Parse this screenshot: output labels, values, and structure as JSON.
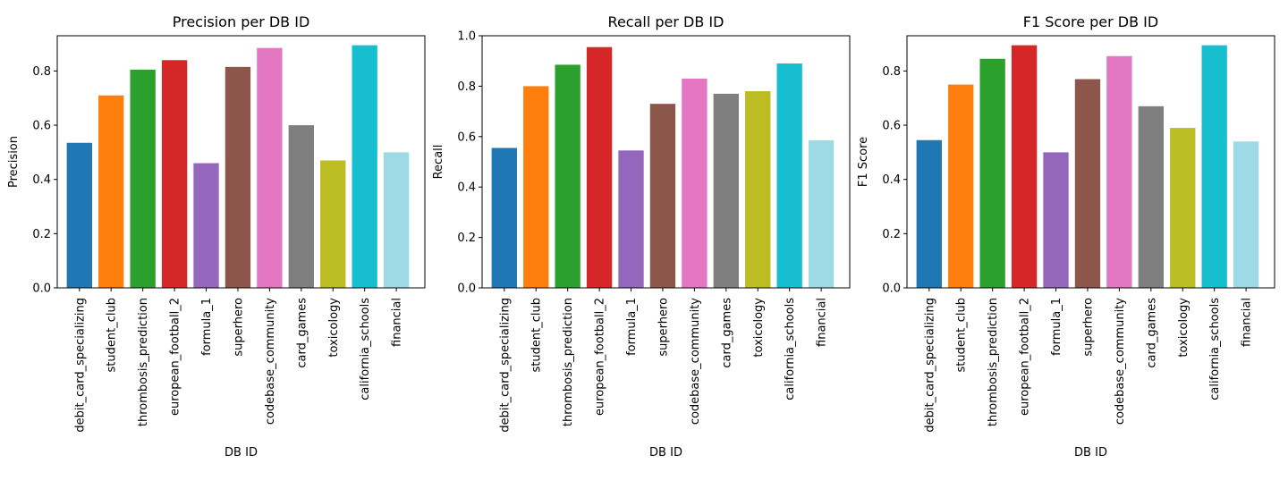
{
  "chart_data": [
    {
      "type": "bar",
      "title": "Precision per DB ID",
      "xlabel": "DB ID",
      "ylabel": "Precision",
      "ylim": [
        0,
        0.93
      ],
      "yticks": [
        "0.0",
        "0.2",
        "0.4",
        "0.6",
        "0.8"
      ],
      "categories": [
        "debit_card_specializing",
        "student_club",
        "thrombosis_prediction",
        "european_football_2",
        "formula_1",
        "superhero",
        "codebase_community",
        "card_games",
        "toxicology",
        "california_schools",
        "financial"
      ],
      "values": [
        0.535,
        0.71,
        0.805,
        0.84,
        0.46,
        0.815,
        0.885,
        0.6,
        0.47,
        0.895,
        0.5
      ],
      "colors": [
        "#1f77b4",
        "#ff7f0e",
        "#2ca02c",
        "#d62728",
        "#9467bd",
        "#8c564b",
        "#e377c2",
        "#7f7f7f",
        "#bcbd22",
        "#17becf",
        "#9edae5"
      ],
      "grid": false,
      "legend": "none"
    },
    {
      "type": "bar",
      "title": "Recall per DB ID",
      "xlabel": "DB ID",
      "ylabel": "Recall",
      "ylim": [
        0,
        1.0
      ],
      "yticks": [
        "0.0",
        "0.2",
        "0.4",
        "0.6",
        "0.8",
        "1.0"
      ],
      "categories": [
        "debit_card_specializing",
        "student_club",
        "thrombosis_prediction",
        "european_football_2",
        "formula_1",
        "superhero",
        "codebase_community",
        "card_games",
        "toxicology",
        "california_schools",
        "financial"
      ],
      "values": [
        0.555,
        0.8,
        0.885,
        0.955,
        0.545,
        0.73,
        0.83,
        0.77,
        0.78,
        0.89,
        0.585
      ],
      "colors": [
        "#1f77b4",
        "#ff7f0e",
        "#2ca02c",
        "#d62728",
        "#9467bd",
        "#8c564b",
        "#e377c2",
        "#7f7f7f",
        "#bcbd22",
        "#17becf",
        "#9edae5"
      ],
      "grid": false,
      "legend": "none"
    },
    {
      "type": "bar",
      "title": "F1 Score per DB ID",
      "xlabel": "DB ID",
      "ylabel": "F1 Score",
      "ylim": [
        0,
        0.93
      ],
      "yticks": [
        "0.0",
        "0.2",
        "0.4",
        "0.6",
        "0.8"
      ],
      "categories": [
        "debit_card_specializing",
        "student_club",
        "thrombosis_prediction",
        "european_football_2",
        "formula_1",
        "superhero",
        "codebase_community",
        "card_games",
        "toxicology",
        "california_schools",
        "financial"
      ],
      "values": [
        0.545,
        0.75,
        0.845,
        0.895,
        0.5,
        0.77,
        0.855,
        0.67,
        0.59,
        0.895,
        0.54
      ],
      "colors": [
        "#1f77b4",
        "#ff7f0e",
        "#2ca02c",
        "#d62728",
        "#9467bd",
        "#8c564b",
        "#e377c2",
        "#7f7f7f",
        "#bcbd22",
        "#17becf",
        "#9edae5"
      ],
      "grid": false,
      "legend": "none"
    }
  ]
}
